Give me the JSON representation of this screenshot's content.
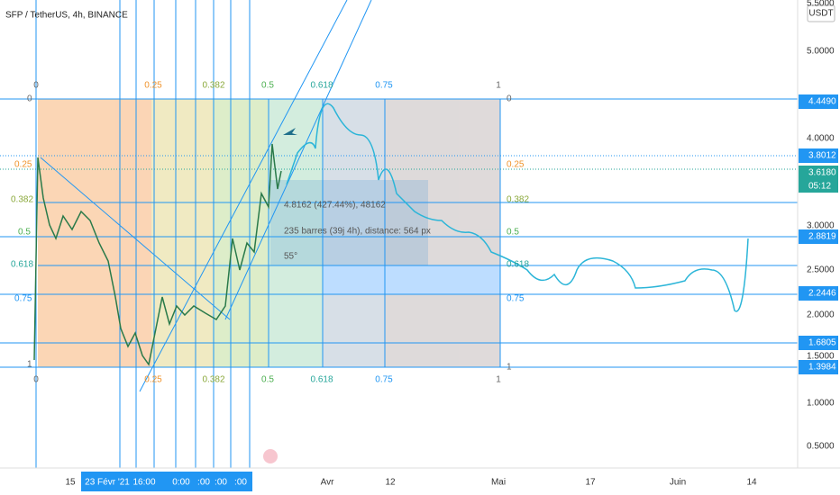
{
  "header": {
    "title": "SFP / TetherUS, 4h, BINANCE"
  },
  "price_axis": {
    "currency": "USDT",
    "labels": [
      "5.5000",
      "5.0000",
      "4.0000",
      "3.0000",
      "2.5000",
      "2.0000",
      "1.5000",
      "1.0000",
      "0.5000"
    ],
    "tags": [
      "4.4490",
      "3.8012",
      "3.6180",
      "2.8819",
      "2.2446",
      "1.6805",
      "1.3984"
    ],
    "countdown": "05:12"
  },
  "time_axis": {
    "labels": [
      "15",
      "23 Févr '21",
      "16:00",
      "0:00",
      ":00",
      ":00",
      ":00",
      "Avr",
      "12",
      "Mai",
      "17",
      "Juin",
      "14"
    ]
  },
  "fib_time_labels": [
    "0",
    "0.25",
    "0.382",
    "0.5",
    "0.618",
    "0.75",
    "1"
  ],
  "fib_price_labels": [
    "0",
    "0.25",
    "0.382",
    "0.5",
    "0.618",
    "0.75",
    "1"
  ],
  "measure": {
    "price_change": "4.8162 (427.44%), 48162",
    "bars": "235 barres (39j 4h), distance: 564 px",
    "angle": "55°"
  }
}
